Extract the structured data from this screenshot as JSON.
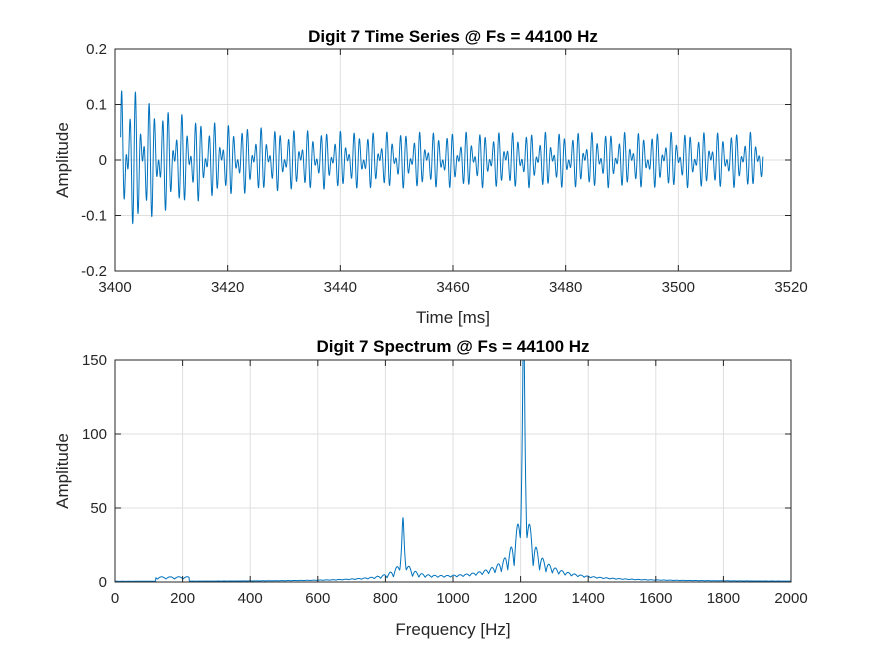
{
  "chart_data": [
    {
      "type": "line",
      "title": "Digit 7 Time Series @ Fs = 44100 Hz",
      "xlabel": "Time [ms]",
      "ylabel": "Amplitude",
      "xlim": [
        3400,
        3520
      ],
      "ylim": [
        -0.2,
        0.2
      ],
      "xticks": [
        3400,
        3420,
        3440,
        3460,
        3480,
        3500,
        3520
      ],
      "yticks": [
        -0.2,
        -0.1,
        0,
        0.1,
        0.2
      ],
      "xtick_labels": [
        "3400",
        "3420",
        "3440",
        "3460",
        "3480",
        "3500",
        "3520"
      ],
      "ytick_labels": [
        "-0.2",
        "-0.1",
        "0",
        "0.1",
        "0.2"
      ],
      "grid": true,
      "color": "#0072BD",
      "signal": {
        "description_of_trace": "sum of two tones",
        "tone1_hz": 852,
        "tone2_hz": 1209,
        "t_start_ms": 3401,
        "t_end_ms": 3515,
        "initial_envelope": 0.145,
        "steady_envelope": 0.05,
        "decay_ms": 10
      }
    },
    {
      "type": "line",
      "title": "Digit 7 Spectrum @ Fs = 44100 Hz",
      "xlabel": "Frequency [Hz]",
      "ylabel": "Amplitude",
      "xlim": [
        0,
        2000
      ],
      "ylim": [
        0,
        150
      ],
      "xticks": [
        0,
        200,
        400,
        600,
        800,
        1000,
        1200,
        1400,
        1600,
        1800,
        2000
      ],
      "yticks": [
        0,
        50,
        100,
        150
      ],
      "xtick_labels": [
        "0",
        "200",
        "400",
        "600",
        "800",
        "1000",
        "1200",
        "1400",
        "1600",
        "1800",
        "2000"
      ],
      "ytick_labels": [
        "0",
        "50",
        "100",
        "150"
      ],
      "grid": true,
      "color": "#0072BD",
      "peaks": [
        {
          "x": 852,
          "y": 33
        },
        {
          "x": 1209,
          "y": 142
        }
      ]
    }
  ]
}
